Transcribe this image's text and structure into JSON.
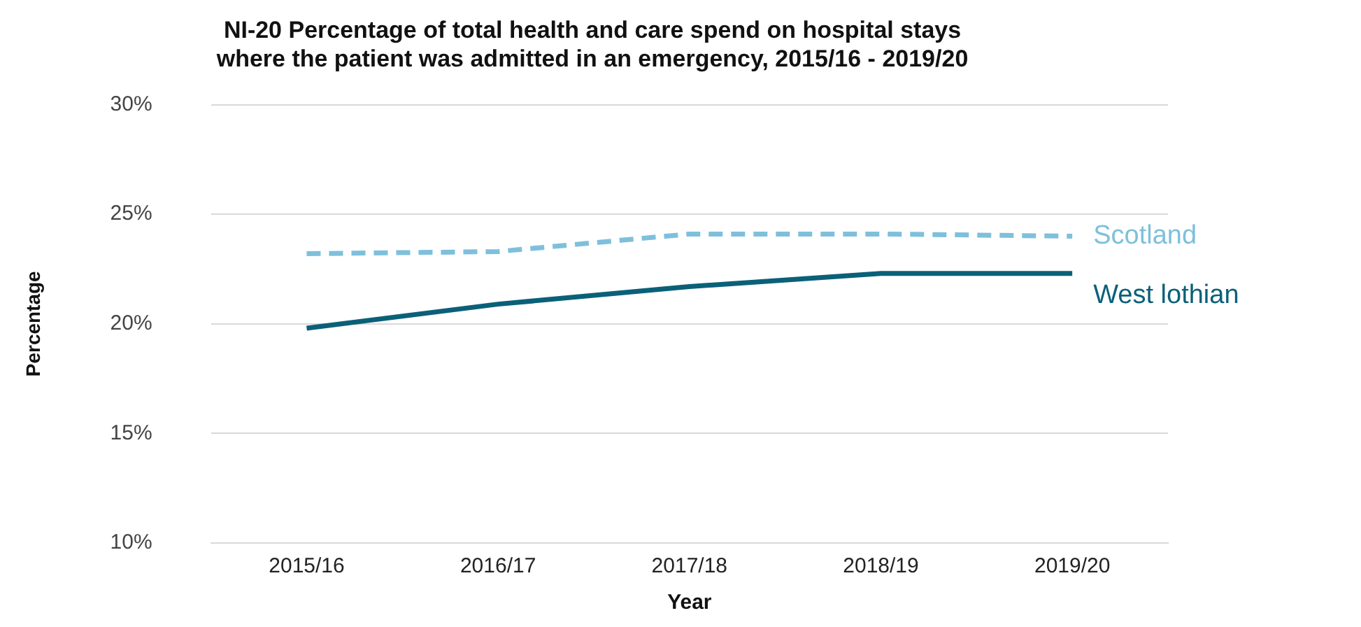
{
  "chart_data": {
    "type": "line",
    "title": "NI-20 Percentage of total health and care spend on hospital stays\nwhere the patient was admitted in an emergency, 2015/16 - 2019/20",
    "xlabel": "Year",
    "ylabel": "Percentage",
    "categories": [
      "2015/16",
      "2016/17",
      "2017/18",
      "2018/19",
      "2019/20"
    ],
    "series": [
      {
        "name": "Scotland",
        "color": "#7ec0dc",
        "line_style": "dashed",
        "values": [
          23.2,
          23.3,
          24.1,
          24.1,
          24.0
        ]
      },
      {
        "name": "West lothian",
        "color": "#0b6079",
        "line_style": "solid",
        "values": [
          19.8,
          20.9,
          21.7,
          22.3,
          22.3
        ]
      }
    ],
    "ylim": [
      10,
      30
    ],
    "yticks": [
      {
        "value": 10,
        "label": "10%"
      },
      {
        "value": 15,
        "label": "15%"
      },
      {
        "value": 20,
        "label": "20%"
      },
      {
        "value": 25,
        "label": "25%"
      },
      {
        "value": 30,
        "label": "30%"
      }
    ],
    "grid": "y",
    "legend": false,
    "marker": "none"
  }
}
